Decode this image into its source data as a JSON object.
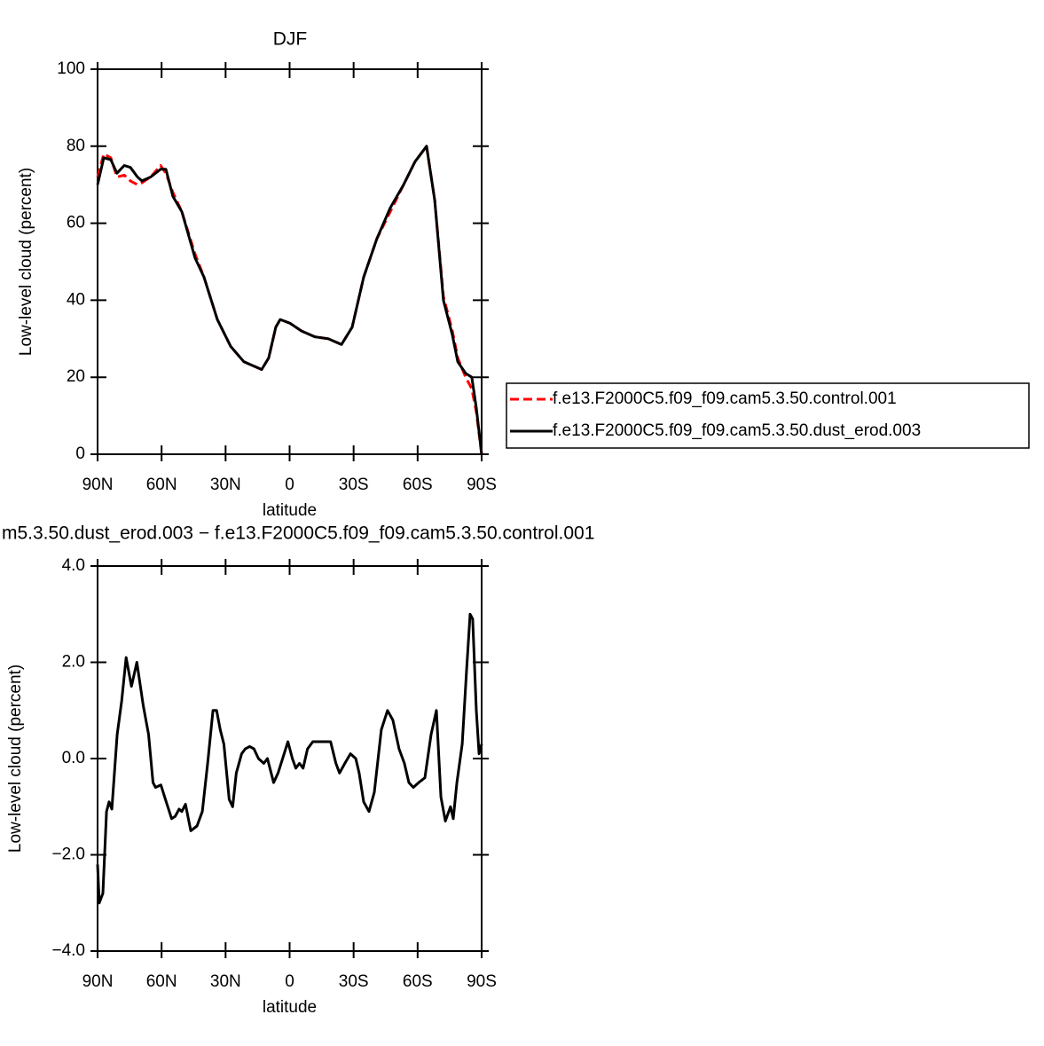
{
  "chart_data": [
    {
      "type": "line",
      "title": "DJF",
      "xlabel": "latitude",
      "ylabel": "Low-level cloud (percent)",
      "xlim": [
        90,
        -90
      ],
      "ylim": [
        0,
        100
      ],
      "xticks": [
        {
          "value": 90,
          "label": "90N"
        },
        {
          "value": 60,
          "label": "60N"
        },
        {
          "value": 30,
          "label": "30N"
        },
        0,
        {
          "value": -30,
          "label": "30S"
        },
        {
          "value": -60,
          "label": "60S"
        },
        {
          "value": -90,
          "label": "90S"
        }
      ],
      "yticks": [
        0,
        20,
        40,
        60,
        80,
        100
      ],
      "legend": "right",
      "x": [
        90,
        87.1,
        83.8,
        80.9,
        77.5,
        74.6,
        71.3,
        69.2,
        65.1,
        60.5,
        58,
        54.7,
        50.5,
        44.3,
        40.1,
        33.9,
        27.6,
        21.4,
        13.1,
        9.8,
        6.5,
        4.4,
        -0.2,
        -5.6,
        -11.8,
        -18.1,
        -24.3,
        -29.3,
        -34.7,
        -40.9,
        -47.2,
        -53.4,
        -58.8,
        -64.2,
        -68,
        -72.1,
        -76.3,
        -78.8,
        -82.5,
        -85.4,
        -87.5,
        -90
      ],
      "series": [
        {
          "name": "f.e13.F2000C5.f09_f09.cam5.3.50.control.001",
          "color": "#ff0000",
          "dash": true,
          "values": [
            72,
            78,
            77,
            72,
            72.5,
            71,
            70,
            70.5,
            72,
            75,
            73,
            68,
            63,
            52,
            46,
            35,
            28,
            24,
            22,
            25,
            33,
            35,
            34,
            32,
            30.5,
            30,
            28.5,
            33,
            46,
            56,
            63,
            70,
            76,
            80,
            66,
            41,
            32,
            25,
            20,
            17,
            11,
            0
          ]
        },
        {
          "name": "f.e13.F2000C5.f09_f09.cam5.3.50.dust_erod.003",
          "color": "#000000",
          "dash": false,
          "values": [
            70,
            77,
            76.5,
            73,
            75,
            74.5,
            72,
            71,
            72,
            74,
            74,
            67,
            63,
            51,
            46,
            35,
            28,
            24,
            22,
            25,
            33,
            35,
            34,
            32,
            30.5,
            30,
            28.5,
            33,
            46,
            56,
            64,
            70,
            76,
            80,
            66,
            40,
            31,
            24,
            21,
            20,
            12,
            0
          ]
        }
      ]
    },
    {
      "type": "line",
      "title": "m5.3.50.dust_erod.003 − f.e13.F2000C5.f09_f09.cam5.3.50.control.001",
      "xlabel": "latitude",
      "ylabel": "Low-level cloud (percent)",
      "xlim": [
        90,
        -90
      ],
      "ylim": [
        -4,
        4
      ],
      "xticks": [
        {
          "value": 90,
          "label": "90N"
        },
        {
          "value": 60,
          "label": "60N"
        },
        {
          "value": 30,
          "label": "30N"
        },
        0,
        {
          "value": -30,
          "label": "30S"
        },
        {
          "value": -60,
          "label": "60S"
        },
        {
          "value": -90,
          "label": "90S"
        }
      ],
      "yticks": [
        {
          "value": -4,
          "label": "−4.0"
        },
        {
          "value": -2,
          "label": "−2.0"
        },
        {
          "value": 0,
          "label": "0.0"
        },
        {
          "value": 2,
          "label": "2.0"
        },
        {
          "value": 4,
          "label": "4.0"
        }
      ],
      "x": [
        90,
        89.2,
        87.5,
        85.8,
        84.6,
        83.3,
        80.8,
        78.7,
        76.6,
        74.1,
        71.6,
        68.6,
        66.1,
        64,
        62.8,
        60.3,
        58.2,
        55.3,
        53.6,
        51.8,
        50.5,
        48.8,
        46.3,
        43.4,
        40.9,
        38.4,
        35.9,
        34.2,
        32.5,
        30.8,
        28.3,
        26.7,
        25,
        22.5,
        20.8,
        18.7,
        16.7,
        14.6,
        12.1,
        10.4,
        7.5,
        5.4,
        0.8,
        -1.3,
        -2.9,
        -4.6,
        -6.3,
        -8.4,
        -10.9,
        -15.1,
        -19.2,
        -21.7,
        -23.4,
        -25.9,
        -28.5,
        -31,
        -32.6,
        -34.7,
        -37.2,
        -39.7,
        -43,
        -45.9,
        -48.4,
        -51.3,
        -53.8,
        -55.9,
        -58,
        -60.5,
        -63.4,
        -66.3,
        -68.8,
        -70.9,
        -73,
        -75.4,
        -76.7,
        -78.4,
        -80.9,
        -82.9,
        -84.6,
        -85.8,
        -87.5,
        -88.8,
        -90
      ],
      "series": [
        {
          "color": "#000000",
          "dash": false,
          "values": [
            -2.2,
            -3.0,
            -2.8,
            -1.1,
            -0.9,
            -1.05,
            0.5,
            1.2,
            2.1,
            1.5,
            2.0,
            1.1,
            0.5,
            -0.5,
            -0.6,
            -0.55,
            -0.85,
            -1.25,
            -1.2,
            -1.05,
            -1.1,
            -0.95,
            -1.5,
            -1.4,
            -1.1,
            -0.1,
            1.0,
            1.0,
            0.6,
            0.3,
            -0.85,
            -1.0,
            -0.3,
            0.1,
            0.2,
            0.25,
            0.2,
            0.0,
            -0.1,
            0.0,
            -0.5,
            -0.3,
            0.35,
            0.0,
            -0.2,
            -0.1,
            -0.2,
            0.2,
            0.35,
            0.35,
            0.35,
            -0.1,
            -0.3,
            -0.1,
            0.1,
            0.0,
            -0.3,
            -0.9,
            -1.1,
            -0.7,
            0.6,
            1.0,
            0.8,
            0.2,
            -0.1,
            -0.5,
            -0.6,
            -0.5,
            -0.4,
            0.5,
            1.0,
            -0.8,
            -1.3,
            -1.0,
            -1.25,
            -0.5,
            0.3,
            1.8,
            3.0,
            2.9,
            1.0,
            0.1,
            0.3
          ]
        }
      ]
    }
  ]
}
